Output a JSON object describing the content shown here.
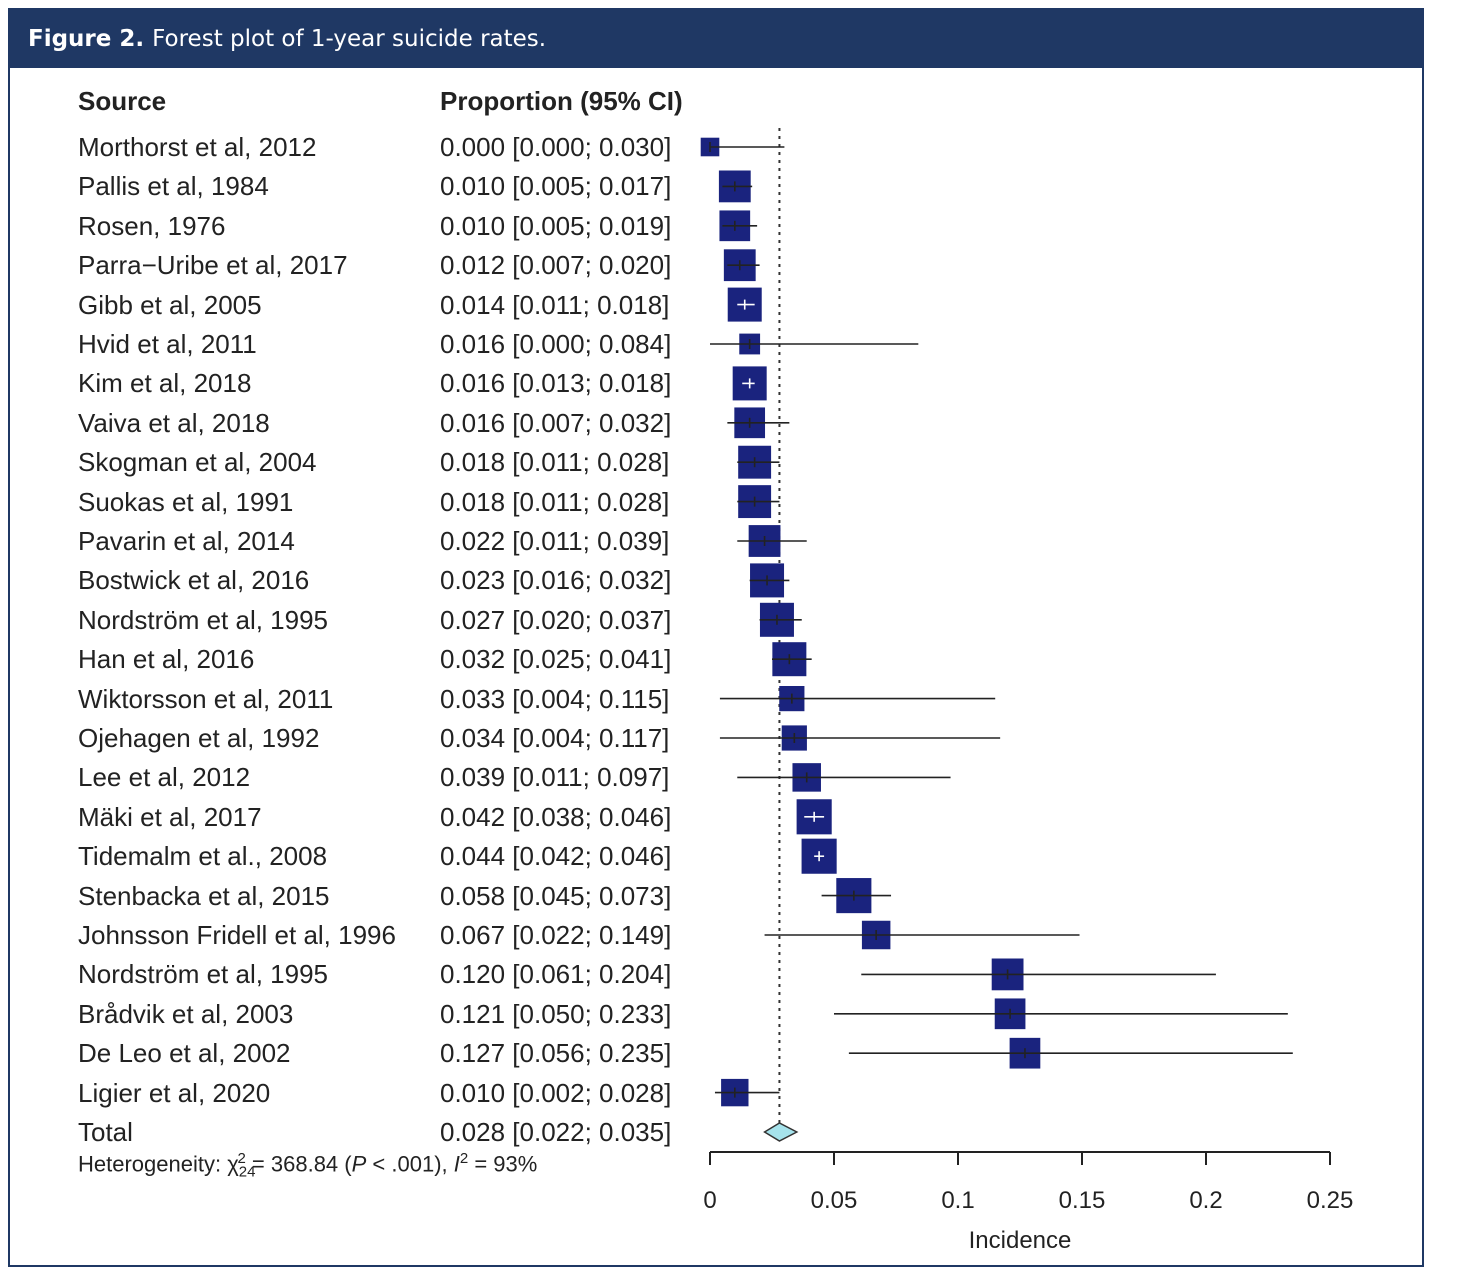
{
  "figure": {
    "label": "Figure 2.",
    "caption": "Forest plot of 1-year suicide rates."
  },
  "columns": {
    "source": "Source",
    "proportion": "Proportion (95% CI)"
  },
  "heterogeneity": {
    "prefix": "Heterogeneity: ",
    "chi": "χ",
    "chi_sup": "2",
    "chi_sub": "24",
    "stat": " = 368.84 (",
    "p_letter": "P",
    "p_value": " < .001), ",
    "i_letter": "I",
    "i_sup": "2",
    "i_value": " = 93%"
  },
  "chart_data": {
    "type": "forest",
    "xlabel": "Incidence",
    "xlim": [
      0,
      0.25
    ],
    "xticks": [
      0,
      0.05,
      0.1,
      0.15,
      0.2,
      0.25
    ],
    "xtick_labels": [
      "0",
      "0.05",
      "0.1",
      "0.15",
      "0.2",
      "0.25"
    ],
    "reference_line": 0.028,
    "colors": {
      "box": "#1a237e",
      "diamond": "#a6e3ec",
      "line": "#222222"
    },
    "studies": [
      {
        "source": "Morthorst et al, 2012",
        "label": "0.000 [0.000; 0.030]",
        "est": 0.0,
        "lo": 0.0,
        "hi": 0.03,
        "weight": 0.3
      },
      {
        "source": "Pallis et al, 1984",
        "label": "0.010 [0.005; 0.017]",
        "est": 0.01,
        "lo": 0.005,
        "hi": 0.017,
        "weight": 0.9
      },
      {
        "source": "Rosen, 1976",
        "label": "0.010 [0.005; 0.019]",
        "est": 0.01,
        "lo": 0.005,
        "hi": 0.019,
        "weight": 0.85
      },
      {
        "source": "Parra−Uribe et al, 2017",
        "label": "0.012 [0.007; 0.020]",
        "est": 0.012,
        "lo": 0.007,
        "hi": 0.02,
        "weight": 0.9
      },
      {
        "source": "Gibb et al, 2005",
        "label": "0.014 [0.011; 0.018]",
        "est": 0.014,
        "lo": 0.011,
        "hi": 0.018,
        "weight": 1.0
      },
      {
        "source": "Hvid et al, 2011",
        "label": "0.016 [0.000; 0.084]",
        "est": 0.016,
        "lo": 0.0,
        "hi": 0.084,
        "weight": 0.4
      },
      {
        "source": "Kim et al, 2018",
        "label": "0.016 [0.013; 0.018]",
        "est": 0.016,
        "lo": 0.013,
        "hi": 0.018,
        "weight": 1.0
      },
      {
        "source": "Vaiva et al, 2018",
        "label": "0.016 [0.007; 0.032]",
        "est": 0.016,
        "lo": 0.007,
        "hi": 0.032,
        "weight": 0.85
      },
      {
        "source": "Skogman et al, 2004",
        "label": "0.018 [0.011; 0.028]",
        "est": 0.018,
        "lo": 0.011,
        "hi": 0.028,
        "weight": 0.95
      },
      {
        "source": "Suokas et al, 1991",
        "label": "0.018 [0.011; 0.028]",
        "est": 0.018,
        "lo": 0.011,
        "hi": 0.028,
        "weight": 0.95
      },
      {
        "source": "Pavarin et al, 2014",
        "label": "0.022 [0.011; 0.039]",
        "est": 0.022,
        "lo": 0.011,
        "hi": 0.039,
        "weight": 0.9
      },
      {
        "source": "Bostwick et al, 2016",
        "label": "0.023 [0.016; 0.032]",
        "est": 0.023,
        "lo": 0.016,
        "hi": 0.032,
        "weight": 1.0
      },
      {
        "source": "Nordström et al, 1995",
        "label": "0.027 [0.020; 0.037]",
        "est": 0.027,
        "lo": 0.02,
        "hi": 0.037,
        "weight": 1.0
      },
      {
        "source": "Han et al, 2016",
        "label": "0.032 [0.025; 0.041]",
        "est": 0.032,
        "lo": 0.025,
        "hi": 0.041,
        "weight": 1.0
      },
      {
        "source": "Wiktorsson et al, 2011",
        "label": "0.033 [0.004; 0.115]",
        "est": 0.033,
        "lo": 0.004,
        "hi": 0.115,
        "weight": 0.6
      },
      {
        "source": "Ojehagen et al, 1992",
        "label": "0.034 [0.004; 0.117]",
        "est": 0.034,
        "lo": 0.004,
        "hi": 0.117,
        "weight": 0.6
      },
      {
        "source": "Lee et al, 2012",
        "label": "0.039 [0.011; 0.097]",
        "est": 0.039,
        "lo": 0.011,
        "hi": 0.097,
        "weight": 0.75
      },
      {
        "source": "Mäki et al, 2017",
        "label": "0.042 [0.038; 0.046]",
        "est": 0.042,
        "lo": 0.038,
        "hi": 0.046,
        "weight": 1.05
      },
      {
        "source": "Tidemalm et al., 2008",
        "label": "0.044 [0.042; 0.046]",
        "est": 0.044,
        "lo": 0.042,
        "hi": 0.046,
        "weight": 1.05
      },
      {
        "source": "Stenbacka et al, 2015",
        "label": "0.058 [0.045; 0.073]",
        "est": 0.058,
        "lo": 0.045,
        "hi": 0.073,
        "weight": 1.05
      },
      {
        "source": "Johnsson Fridell et al, 1996",
        "label": "0.067 [0.022; 0.149]",
        "est": 0.067,
        "lo": 0.022,
        "hi": 0.149,
        "weight": 0.75
      },
      {
        "source": "Nordström et al, 1995",
        "label": "0.120 [0.061; 0.204]",
        "est": 0.12,
        "lo": 0.061,
        "hi": 0.204,
        "weight": 0.9
      },
      {
        "source": "Brådvik et al, 2003",
        "label": "0.121 [0.050; 0.233]",
        "est": 0.121,
        "lo": 0.05,
        "hi": 0.233,
        "weight": 0.85
      },
      {
        "source": "De Leo et al, 2002",
        "label": "0.127 [0.056; 0.235]",
        "est": 0.127,
        "lo": 0.056,
        "hi": 0.235,
        "weight": 0.85
      },
      {
        "source": "Ligier et al, 2020",
        "label": "0.010 [0.002; 0.028]",
        "est": 0.01,
        "lo": 0.002,
        "hi": 0.028,
        "weight": 0.7
      }
    ],
    "total": {
      "source": "Total",
      "label": "0.028 [0.022; 0.035]",
      "est": 0.028,
      "lo": 0.022,
      "hi": 0.035
    }
  }
}
